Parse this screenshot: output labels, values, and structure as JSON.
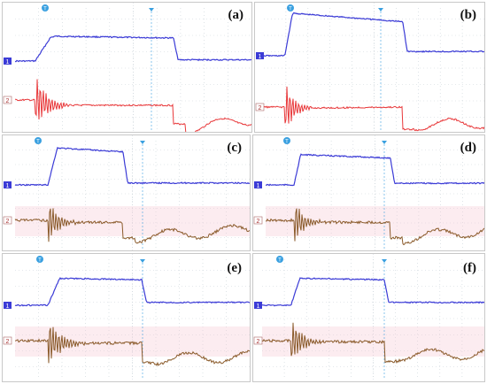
{
  "figure": {
    "panels": [
      {
        "label": "(a)",
        "ch1_marker": "1",
        "ch2_marker": "2",
        "trigger_marker": "T"
      },
      {
        "label": "(b)",
        "ch1_marker": "1",
        "ch2_marker": "2",
        "trigger_marker": "T"
      },
      {
        "label": "(c)",
        "ch1_marker": "1",
        "ch2_marker": "2",
        "trigger_marker": "T"
      },
      {
        "label": "(d)",
        "ch1_marker": "1",
        "ch2_marker": "2",
        "trigger_marker": "T"
      },
      {
        "label": "(e)",
        "ch1_marker": "1",
        "ch2_marker": "2",
        "trigger_marker": "T"
      },
      {
        "label": "(f)",
        "ch1_marker": "1",
        "ch2_marker": "2",
        "trigger_marker": "T"
      }
    ]
  },
  "colors": {
    "channel1": "#3b3bd6",
    "channel2_red": "#e8383a",
    "channel2_brown": "#8a5a2a",
    "grid": "#c9d2d8",
    "trigger": "#3aa0e0",
    "pink_glow": "#f6c9d4"
  },
  "chart_data": [
    {
      "type": "line",
      "panel": "(a)",
      "grid": true,
      "x": [
        0,
        0.85,
        1.5,
        1.7,
        6.7,
        6.9,
        10
      ],
      "series": [
        {
          "values": [
            0,
            0,
            0.95,
            1,
            0.93,
            0.05,
            0.05
          ]
        },
        {
          "values": [
            0,
            0,
            -0.2,
            -0.2,
            -0.2,
            -1,
            -0.6
          ]
        }
      ]
    },
    {
      "type": "line",
      "panel": "(b)",
      "grid": true,
      "x": [
        0,
        0.95,
        1.3,
        6.3,
        6.5,
        10
      ],
      "series": [
        {
          "values": [
            0,
            0,
            1,
            0.8,
            0.1,
            0.1
          ]
        },
        {
          "values": [
            0,
            0,
            -0.05,
            0,
            -0.6,
            -0.5
          ]
        }
      ]
    },
    {
      "type": "line",
      "panel": "(c)",
      "grid": true,
      "x": [
        0,
        1.4,
        1.8,
        4.6,
        4.8,
        10
      ],
      "series": [
        {
          "values": [
            0,
            0,
            0.95,
            0.85,
            0.05,
            0.05
          ]
        },
        {
          "values": [
            0,
            0,
            -0.1,
            -0.1,
            -0.7,
            -0.3
          ]
        }
      ]
    },
    {
      "type": "line",
      "panel": "(d)",
      "grid": true,
      "x": [
        0,
        1.3,
        1.6,
        5.7,
        5.9,
        10
      ],
      "series": [
        {
          "values": [
            0,
            0,
            0.9,
            0.8,
            0.05,
            0.05
          ]
        },
        {
          "values": [
            0,
            0,
            -0.1,
            -0.1,
            -0.8,
            -0.3
          ]
        }
      ]
    },
    {
      "type": "line",
      "panel": "(e)",
      "grid": true,
      "x": [
        0,
        1.4,
        1.9,
        5.4,
        5.6,
        10
      ],
      "series": [
        {
          "values": [
            0,
            0,
            0.95,
            0.9,
            0.1,
            0.1
          ]
        },
        {
          "values": [
            0,
            0,
            -0.1,
            -0.1,
            -0.6,
            -0.5
          ]
        }
      ]
    },
    {
      "type": "line",
      "panel": "(f)",
      "grid": true,
      "x": [
        0,
        1.3,
        1.7,
        5.5,
        5.7,
        10
      ],
      "series": [
        {
          "values": [
            0,
            0,
            0.95,
            0.9,
            0.1,
            0.1
          ]
        },
        {
          "values": [
            0,
            0,
            -0.05,
            -0.05,
            -0.5,
            -0.4
          ]
        }
      ]
    }
  ]
}
